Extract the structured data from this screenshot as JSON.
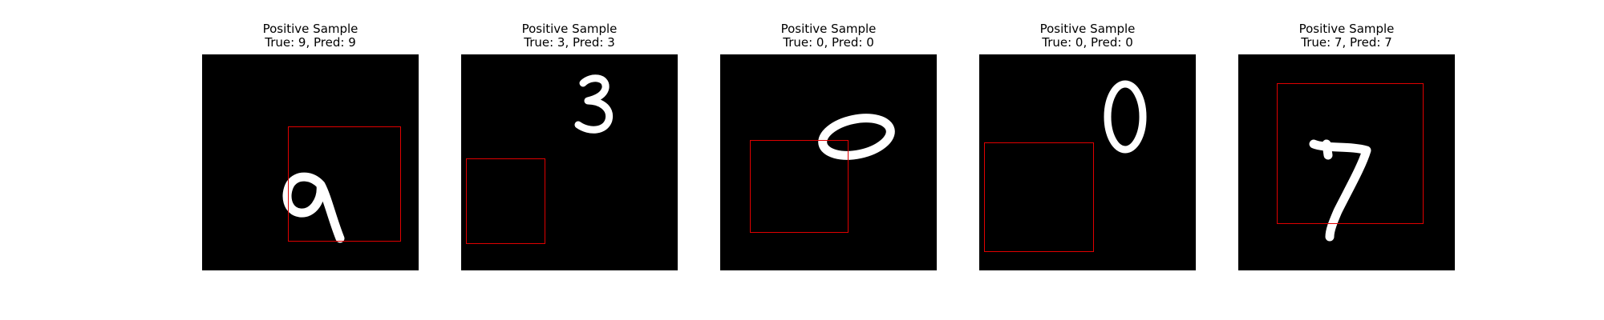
{
  "panels": [
    {
      "line1": "Positive Sample",
      "line2": "True: 9, Pred: 9",
      "digit": "9"
    },
    {
      "line1": "Positive Sample",
      "line2": "True: 3, Pred: 3",
      "digit": "3"
    },
    {
      "line1": "Positive Sample",
      "line2": "True: 0, Pred: 0",
      "digit": "0"
    },
    {
      "line1": "Positive Sample",
      "line2": "True: 0, Pred: 0",
      "digit": "0"
    },
    {
      "line1": "Positive Sample",
      "line2": "True: 7, Pred: 7",
      "digit": "7"
    }
  ],
  "colors": {
    "box": "#e00000",
    "background": "#000000",
    "digit": "#ffffff"
  }
}
